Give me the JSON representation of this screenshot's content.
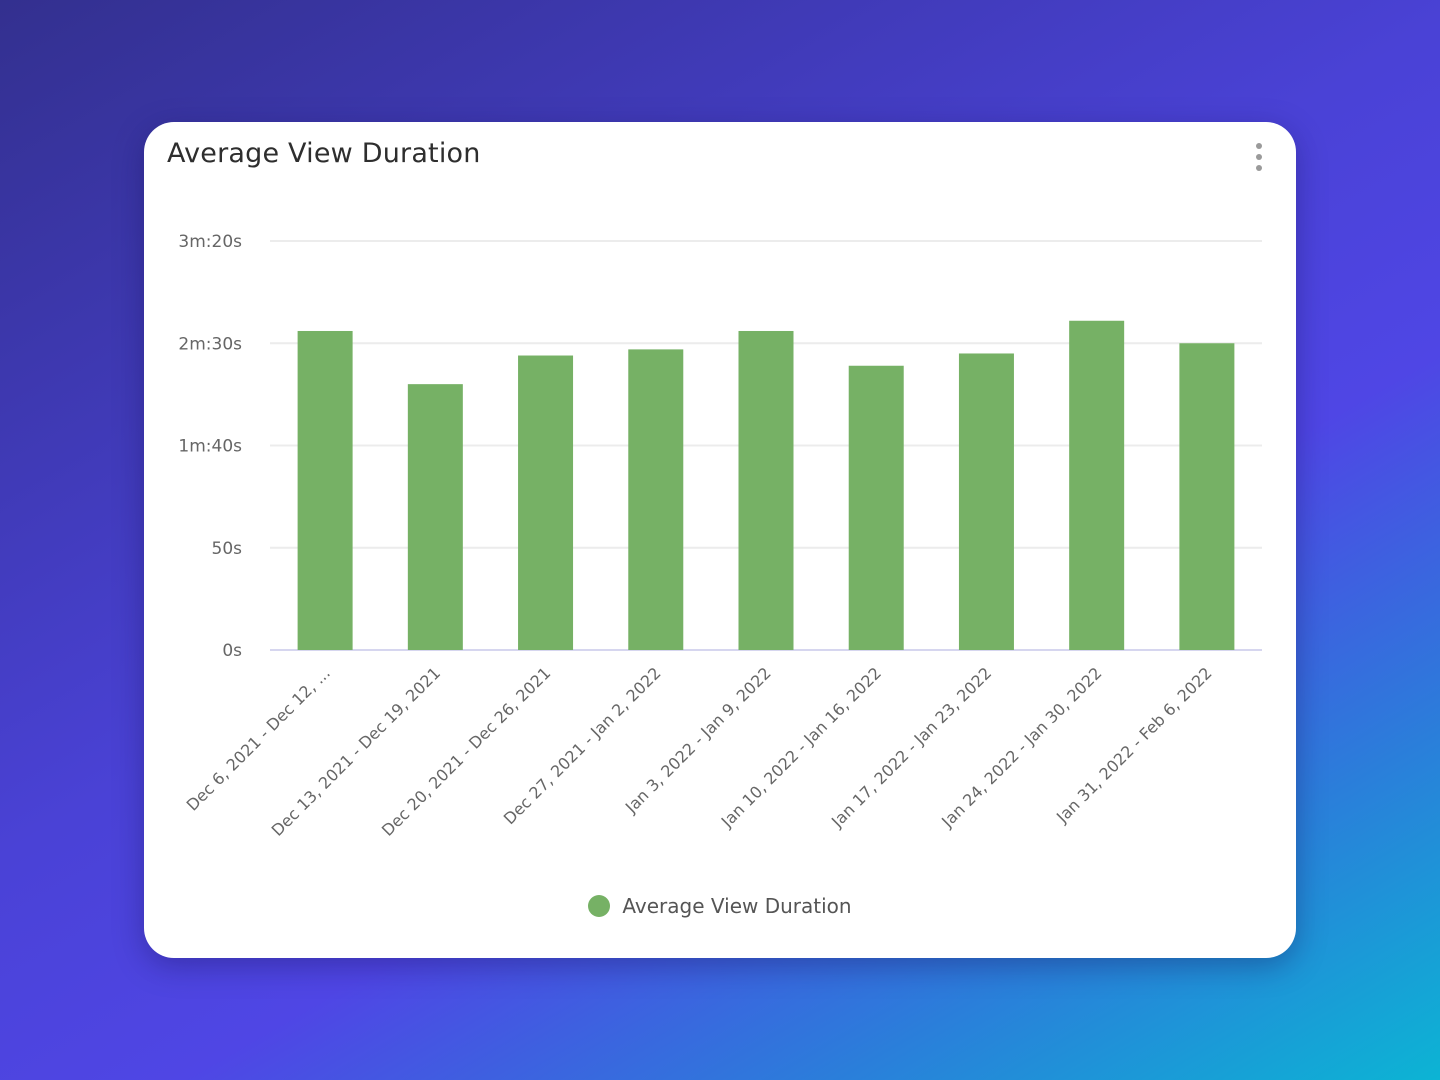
{
  "card": {
    "title": "Average View Duration",
    "menu_icon": "more-vertical-icon"
  },
  "legend": {
    "label": "Average View Duration",
    "color": "#76b165"
  },
  "colors": {
    "bar": "#76b165",
    "grid": "#ececec",
    "axis": "#d6d6ef",
    "tick_text": "#666666"
  },
  "chart_data": {
    "type": "bar",
    "title": "Average View Duration",
    "categories": [
      "Dec 6, 2021 - Dec 12, ...",
      "Dec 13, 2021 - Dec 19, 2021",
      "Dec 20, 2021 - Dec 26, 2021",
      "Dec 27, 2021 - Jan 2, 2022",
      "Jan 3, 2022 - Jan 9, 2022",
      "Jan 10, 2022 - Jan 16, 2022",
      "Jan 17, 2022 - Jan 23, 2022",
      "Jan 24, 2022 - Jan 30, 2022",
      "Jan 31, 2022 - Feb 6, 2022"
    ],
    "series": [
      {
        "name": "Average View Duration",
        "values": [
          156,
          130,
          144,
          147,
          156,
          139,
          145,
          161,
          150
        ]
      }
    ],
    "ylim": [
      0,
      200
    ],
    "yticks": [
      0,
      50,
      100,
      150,
      200
    ],
    "ytick_labels": [
      "0s",
      "50s",
      "1m:40s",
      "2m:30s",
      "3m:20s"
    ],
    "grid": true,
    "legend_position": "bottom"
  }
}
